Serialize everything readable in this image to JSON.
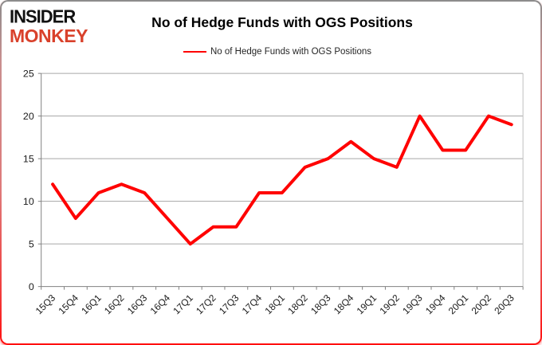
{
  "logo": {
    "line1": "INSIDER",
    "line2": "MONKEY",
    "line1_color": "#111111",
    "line2_color": "#d9412b"
  },
  "colors": {
    "line": "#ff0000",
    "grid": "#a6a6a6",
    "axis": "#808080",
    "text": "#1a1a1a",
    "plot_border": "#bfbfbf"
  },
  "chart_data": {
    "type": "line",
    "title": "No of Hedge Funds with OGS Positions",
    "categories": [
      "15Q3",
      "15Q4",
      "16Q1",
      "16Q2",
      "16Q3",
      "16Q4",
      "17Q1",
      "17Q2",
      "17Q3",
      "17Q4",
      "18Q1",
      "18Q2",
      "18Q3",
      "18Q4",
      "19Q1",
      "19Q2",
      "19Q3",
      "19Q4",
      "20Q1",
      "20Q2",
      "20Q3"
    ],
    "series": [
      {
        "name": "No of Hedge Funds with OGS Positions",
        "color": "#ff0000",
        "values": [
          12,
          8,
          11,
          12,
          11,
          8,
          5,
          7,
          7,
          11,
          11,
          14,
          15,
          17,
          15,
          14,
          20,
          16,
          16,
          20,
          19
        ]
      }
    ],
    "xlabel": "",
    "ylabel": "",
    "ylim": [
      0,
      25
    ],
    "ytick_step": 5,
    "yticks": [
      0,
      5,
      10,
      15,
      20,
      25
    ],
    "grid": true,
    "legend_position": "top-center"
  }
}
